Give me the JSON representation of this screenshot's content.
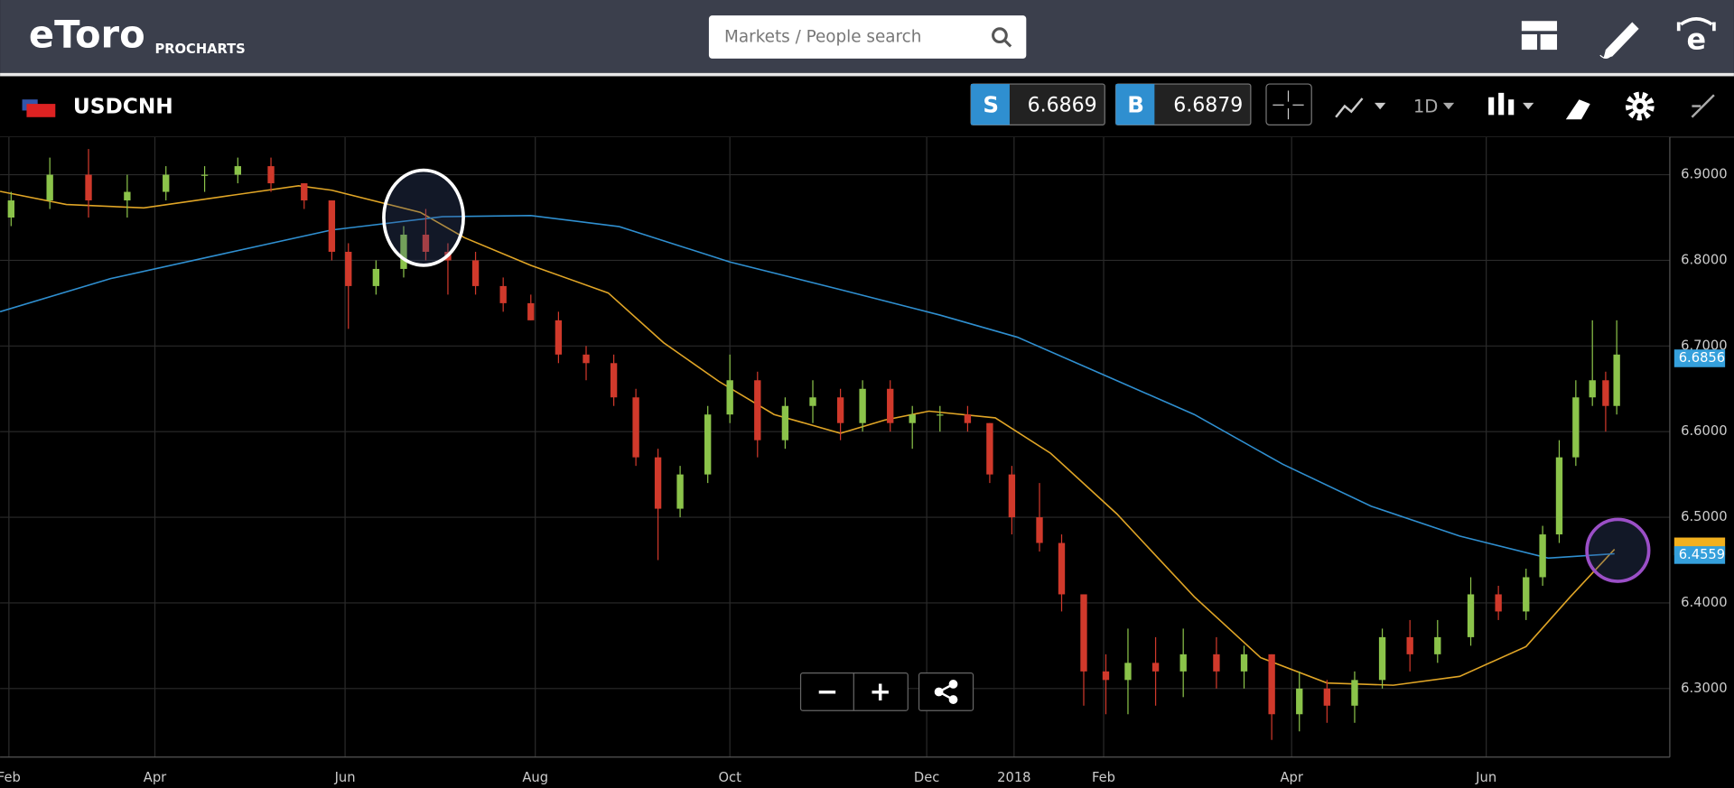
{
  "header": {
    "logo": "eToro",
    "product": "PROCHARTS",
    "search_placeholder": "Markets / People search"
  },
  "toolbar": {
    "symbol": "USDCNH",
    "sell_label": "S",
    "sell_price": "6.6869",
    "buy_label": "B",
    "buy_price": "6.6879",
    "timeframe": "1D"
  },
  "controls": {
    "zoom_out": "−",
    "zoom_in": "+"
  },
  "chart_data": {
    "type": "candlestick",
    "xlim": [
      0,
      1510
    ],
    "ylim": [
      6.22,
      6.944
    ],
    "xticks": [
      {
        "value": 8,
        "label": "Feb"
      },
      {
        "value": 140,
        "label": "Apr"
      },
      {
        "value": 312,
        "label": "Jun"
      },
      {
        "value": 484,
        "label": "Aug"
      },
      {
        "value": 660,
        "label": "Oct"
      },
      {
        "value": 838,
        "label": "Dec"
      },
      {
        "value": 917,
        "label": "2018"
      },
      {
        "value": 998,
        "label": "Feb"
      },
      {
        "value": 1168,
        "label": "Apr"
      },
      {
        "value": 1344,
        "label": "Jun"
      }
    ],
    "yticks": [
      {
        "value": 6.9,
        "label": "6.9000"
      },
      {
        "value": 6.8,
        "label": "6.8000"
      },
      {
        "value": 6.7,
        "label": "6.7000"
      },
      {
        "value": 6.6,
        "label": "6.6000"
      },
      {
        "value": 6.5,
        "label": "6.5000"
      },
      {
        "value": 6.4,
        "label": "6.4000"
      },
      {
        "value": 6.3,
        "label": "6.3000"
      }
    ],
    "grid": true,
    "up_color": "#8bc34a",
    "down_color": "#d0392b",
    "x": [
      10,
      45,
      80,
      115,
      150,
      185,
      215,
      245,
      275,
      300,
      315,
      340,
      365,
      385,
      405,
      430,
      455,
      480,
      505,
      530,
      555,
      575,
      595,
      615,
      640,
      660,
      685,
      710,
      735,
      760,
      780,
      805,
      825,
      850,
      875,
      895,
      915,
      940,
      960,
      980,
      1000,
      1020,
      1045,
      1070,
      1100,
      1125,
      1150,
      1175,
      1200,
      1225,
      1250,
      1275,
      1300,
      1330,
      1355,
      1380,
      1395,
      1410,
      1425,
      1440,
      1452,
      1462
    ],
    "open": [
      6.85,
      6.87,
      6.9,
      6.87,
      6.88,
      6.9,
      6.9,
      6.91,
      6.89,
      6.87,
      6.81,
      6.77,
      6.79,
      6.83,
      6.81,
      6.8,
      6.77,
      6.75,
      6.73,
      6.69,
      6.68,
      6.64,
      6.57,
      6.51,
      6.55,
      6.62,
      6.66,
      6.59,
      6.63,
      6.64,
      6.61,
      6.65,
      6.61,
      6.62,
      6.62,
      6.61,
      6.55,
      6.5,
      6.47,
      6.41,
      6.32,
      6.31,
      6.33,
      6.32,
      6.34,
      6.32,
      6.34,
      6.27,
      6.3,
      6.28,
      6.31,
      6.36,
      6.34,
      6.36,
      6.41,
      6.39,
      6.43,
      6.48,
      6.57,
      6.64,
      6.66,
      6.63
    ],
    "high": [
      6.88,
      6.92,
      6.93,
      6.9,
      6.91,
      6.91,
      6.92,
      6.92,
      6.89,
      6.87,
      6.82,
      6.8,
      6.84,
      6.86,
      6.82,
      6.81,
      6.78,
      6.76,
      6.74,
      6.7,
      6.69,
      6.65,
      6.58,
      6.56,
      6.63,
      6.69,
      6.67,
      6.64,
      6.66,
      6.65,
      6.66,
      6.66,
      6.63,
      6.63,
      6.63,
      6.61,
      6.56,
      6.54,
      6.48,
      6.41,
      6.34,
      6.37,
      6.36,
      6.37,
      6.36,
      6.35,
      6.34,
      6.32,
      6.31,
      6.32,
      6.37,
      6.38,
      6.38,
      6.43,
      6.42,
      6.44,
      6.49,
      6.59,
      6.66,
      6.73,
      6.67,
      6.73
    ],
    "low": [
      6.84,
      6.86,
      6.85,
      6.85,
      6.87,
      6.88,
      6.89,
      6.88,
      6.86,
      6.8,
      6.72,
      6.76,
      6.78,
      6.8,
      6.76,
      6.76,
      6.74,
      6.73,
      6.68,
      6.66,
      6.63,
      6.56,
      6.45,
      6.5,
      6.54,
      6.61,
      6.57,
      6.58,
      6.61,
      6.59,
      6.6,
      6.6,
      6.58,
      6.6,
      6.6,
      6.54,
      6.48,
      6.46,
      6.39,
      6.28,
      6.27,
      6.27,
      6.28,
      6.29,
      6.3,
      6.3,
      6.24,
      6.25,
      6.26,
      6.26,
      6.3,
      6.32,
      6.33,
      6.35,
      6.38,
      6.38,
      6.42,
      6.47,
      6.56,
      6.63,
      6.6,
      6.62
    ],
    "close": [
      6.87,
      6.9,
      6.87,
      6.88,
      6.9,
      6.9,
      6.91,
      6.89,
      6.87,
      6.81,
      6.77,
      6.79,
      6.83,
      6.81,
      6.8,
      6.77,
      6.75,
      6.73,
      6.69,
      6.68,
      6.64,
      6.57,
      6.51,
      6.55,
      6.62,
      6.66,
      6.59,
      6.63,
      6.64,
      6.61,
      6.65,
      6.61,
      6.62,
      6.62,
      6.61,
      6.55,
      6.5,
      6.47,
      6.41,
      6.32,
      6.31,
      6.33,
      6.32,
      6.34,
      6.32,
      6.34,
      6.27,
      6.3,
      6.28,
      6.31,
      6.36,
      6.34,
      6.36,
      6.41,
      6.39,
      6.43,
      6.48,
      6.57,
      6.64,
      6.66,
      6.63,
      6.69
    ],
    "series": [
      {
        "color": "#e0a526",
        "x": [
          0,
          60,
          130,
          200,
          270,
          300,
          380,
          420,
          480,
          550,
          600,
          650,
          700,
          760,
          800,
          840,
          900,
          950,
          1010,
          1080,
          1140,
          1200,
          1260,
          1320,
          1380,
          1420,
          1460
        ],
        "values": [
          6.8806,
          6.8652,
          6.8613,
          6.8742,
          6.8871,
          6.8819,
          6.8561,
          6.8265,
          6.7942,
          6.7619,
          6.7039,
          6.6587,
          6.62,
          6.5981,
          6.6135,
          6.6239,
          6.6161,
          6.5748,
          6.5039,
          6.4071,
          6.3361,
          6.3065,
          6.3039,
          6.3142,
          6.349,
          6.4071,
          6.4626
        ]
      },
      {
        "color": "#2f8fd0",
        "x": [
          0,
          100,
          200,
          300,
          400,
          480,
          560,
          660,
          760,
          850,
          920,
          1000,
          1080,
          1160,
          1240,
          1320,
          1400,
          1460
        ],
        "values": [
          6.74,
          6.7787,
          6.8071,
          6.8355,
          6.851,
          6.8523,
          6.8394,
          6.7981,
          6.7658,
          6.7361,
          6.7103,
          6.6652,
          6.62,
          6.5619,
          6.5129,
          6.4781,
          6.4523,
          6.4574
        ]
      }
    ],
    "price_labels": [
      {
        "value": 6.6856,
        "label": "6.6856",
        "color": "#35a0dc"
      },
      {
        "value": 6.4559,
        "label": "6.4559",
        "color": "#35a0dc"
      }
    ],
    "marker_color": "#f2b01e",
    "marker_value": 6.466
  }
}
